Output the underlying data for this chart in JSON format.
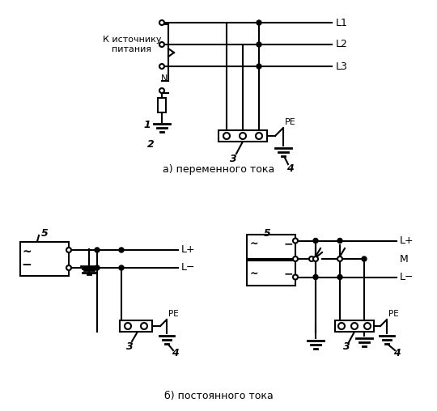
{
  "title_ac": "а) переменного тока",
  "title_dc": "б) постоянного тока",
  "bg_color": "#ffffff",
  "line_color": "#000000",
  "lw": 1.5,
  "labels": {
    "L1": "L1",
    "L2": "L2",
    "L3": "L3",
    "Lplus": "L+",
    "Lminus": "L−",
    "M": "M",
    "PE": "PE",
    "N": "N",
    "source": "К источнику\nпитания",
    "n1": "1",
    "n2": "2",
    "n3": "3",
    "n4": "4",
    "n5": "5"
  }
}
